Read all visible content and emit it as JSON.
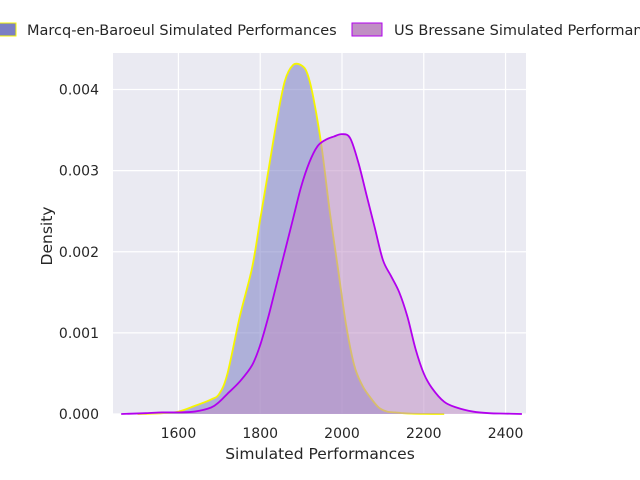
{
  "chart_data": {
    "type": "area",
    "title": "",
    "xlabel": "Simulated Performances",
    "ylabel": "Density",
    "xlim": [
      1440,
      2450
    ],
    "ylim": [
      0,
      0.00445
    ],
    "xticks": [
      1600,
      1800,
      2000,
      2200,
      2400
    ],
    "yticks": [
      0,
      0.001,
      0.002,
      0.003,
      0.004
    ],
    "xtick_labels": [
      "1600",
      "1800",
      "2000",
      "2200",
      "2400"
    ],
    "ytick_labels": [
      "0.000",
      "0.001",
      "0.002",
      "0.003",
      "0.004"
    ],
    "grid": true,
    "legend_position": "top",
    "series": [
      {
        "name": "Marcq-en-Baroeul Simulated Performances",
        "fill_color": "#7b7fc4",
        "line_color": "#f5f500",
        "x": [
          1500,
          1560,
          1600,
          1640,
          1680,
          1700,
          1720,
          1750,
          1780,
          1800,
          1820,
          1840,
          1860,
          1880,
          1900,
          1915,
          1930,
          1950,
          1970,
          1990,
          2010,
          2030,
          2050,
          2070,
          2090,
          2110,
          2130,
          2150,
          2170,
          2200,
          2250
        ],
        "y": [
          0,
          1e-05,
          3e-05,
          0.0001,
          0.00018,
          0.00025,
          0.0005,
          0.0012,
          0.0018,
          0.0024,
          0.003,
          0.0036,
          0.0041,
          0.0043,
          0.0043,
          0.0042,
          0.0039,
          0.0033,
          0.0025,
          0.0018,
          0.0011,
          0.0006,
          0.00035,
          0.0002,
          8e-05,
          3e-05,
          2e-05,
          1e-05,
          5e-06,
          2e-06,
          0
        ]
      },
      {
        "name": "US Bressane Simulated Performances",
        "fill_color": "#c08fc4",
        "line_color": "#b200ee",
        "x": [
          1460,
          1520,
          1560,
          1600,
          1640,
          1680,
          1700,
          1720,
          1750,
          1780,
          1800,
          1820,
          1840,
          1860,
          1880,
          1900,
          1920,
          1940,
          1960,
          1980,
          2000,
          2020,
          2040,
          2060,
          2080,
          2100,
          2120,
          2140,
          2160,
          2180,
          2200,
          2220,
          2250,
          2280,
          2320,
          2360,
          2400,
          2440
        ],
        "y": [
          0,
          1e-05,
          2e-05,
          2e-05,
          3e-05,
          8e-05,
          0.00015,
          0.00025,
          0.0004,
          0.0006,
          0.00085,
          0.0012,
          0.0016,
          0.002,
          0.0024,
          0.0028,
          0.0031,
          0.0033,
          0.00338,
          0.00342,
          0.00345,
          0.0034,
          0.0031,
          0.0027,
          0.0023,
          0.0019,
          0.0017,
          0.0015,
          0.0012,
          0.0008,
          0.0005,
          0.00032,
          0.00015,
          8e-05,
          3e-05,
          1e-05,
          5e-06,
          0
        ]
      }
    ]
  }
}
